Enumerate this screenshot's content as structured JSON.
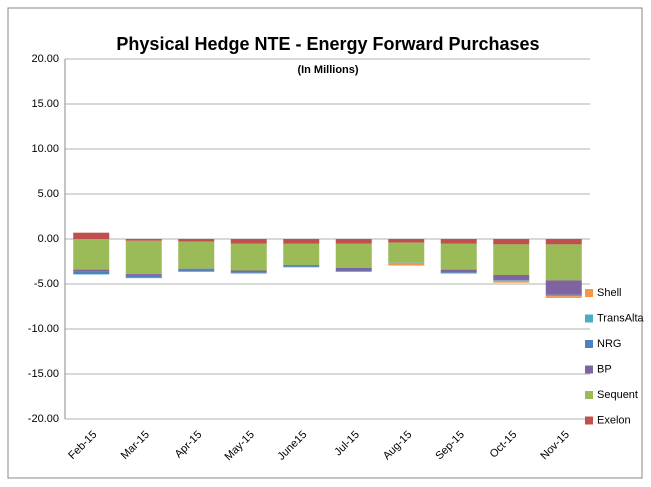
{
  "chart_data": {
    "type": "stacked_bar",
    "title": "Physical Hedge NTE - Energy Forward Purchases",
    "subtitle": "(In Millions)",
    "categories": [
      "Feb-15",
      "Mar-15",
      "Apr-15",
      "May-15",
      "June15",
      "Jul-15",
      "Aug-15",
      "Sep-15",
      "Oct-15",
      "Nov-15"
    ],
    "series": [
      {
        "name": "Exelon",
        "color": "#c0504d",
        "values": [
          0.7,
          -0.2,
          -0.3,
          -0.5,
          -0.5,
          -0.5,
          -0.4,
          -0.5,
          -0.6,
          -0.6
        ]
      },
      {
        "name": "Sequent",
        "color": "#9bbb59",
        "values": [
          -3.4,
          -3.7,
          -3.0,
          -3.0,
          -2.4,
          -2.7,
          -2.2,
          -2.9,
          -3.4,
          -4.0
        ]
      },
      {
        "name": "BP",
        "color": "#8064a2",
        "values": [
          -0.2,
          -0.1,
          -0.1,
          -0.2,
          -0.1,
          -0.3,
          0,
          -0.3,
          -0.5,
          -1.6
        ]
      },
      {
        "name": "NRG",
        "color": "#4f81bd",
        "values": [
          -0.3,
          -0.3,
          -0.2,
          -0.1,
          -0.1,
          -0.1,
          0,
          -0.1,
          -0.1,
          -0.1
        ]
      },
      {
        "name": "TransAlta",
        "color": "#4bacc6",
        "values": [
          -0.05,
          -0.05,
          -0.05,
          -0.05,
          -0.05,
          -0.05,
          -0.05,
          -0.05,
          -0.05,
          -0.05
        ]
      },
      {
        "name": "Shell",
        "color": "#f79646",
        "values": [
          0,
          0,
          0,
          0,
          0,
          0,
          -0.3,
          0,
          -0.2,
          -0.2
        ]
      }
    ],
    "ylim": [
      -20,
      20
    ],
    "yticks": [
      {
        "value": 20,
        "label": "20.00"
      },
      {
        "value": 15,
        "label": "15.00"
      },
      {
        "value": 10,
        "label": "10.00"
      },
      {
        "value": 5,
        "label": "5.00"
      },
      {
        "value": 0,
        "label": "0.00"
      },
      {
        "value": -5,
        "label": "-5.00"
      },
      {
        "value": -10,
        "label": "-10.00"
      },
      {
        "value": -15,
        "label": "-15.00"
      },
      {
        "value": -20,
        "label": "-20.00"
      }
    ],
    "grid": true,
    "legend": "right"
  }
}
